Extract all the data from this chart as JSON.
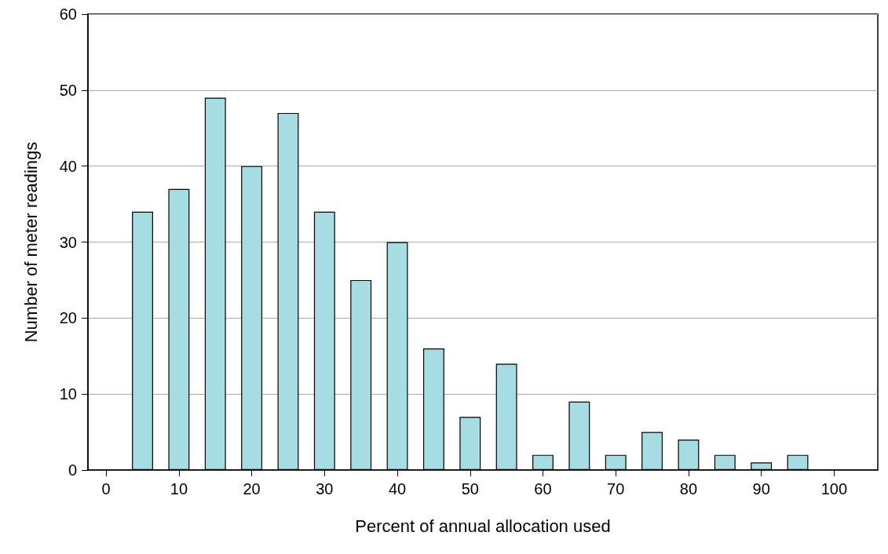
{
  "chart_data": {
    "type": "bar",
    "xlabel": "Percent of annual allocation used",
    "ylabel": "Number of meter readings",
    "x": [
      5,
      10,
      15,
      20,
      25,
      30,
      35,
      40,
      45,
      50,
      55,
      60,
      65,
      70,
      75,
      80,
      85,
      90,
      95
    ],
    "values": [
      34,
      37,
      49,
      40,
      47,
      34,
      25,
      30,
      16,
      7,
      14,
      2,
      9,
      2,
      5,
      4,
      2,
      1,
      2
    ],
    "color": "#a5dde3",
    "xlim": [
      -2.5,
      106
    ],
    "xticks": [
      0,
      10,
      20,
      30,
      40,
      50,
      60,
      70,
      80,
      90,
      100
    ],
    "ylim": [
      0,
      60
    ],
    "yticks": [
      0,
      10,
      20,
      30,
      40,
      50,
      60
    ],
    "grid": "y"
  }
}
